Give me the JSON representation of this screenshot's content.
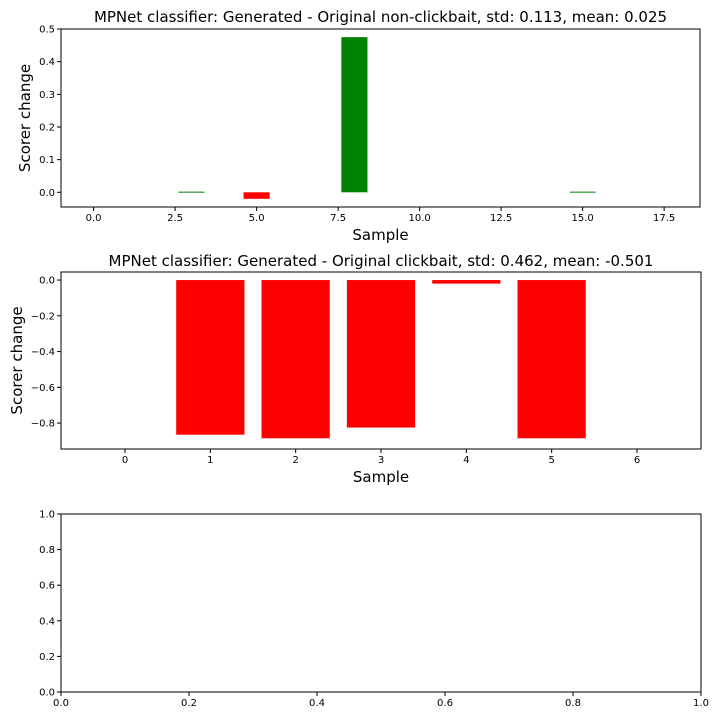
{
  "colors": {
    "positive": "#008000",
    "negative": "#ff0000",
    "axis": "#000000",
    "background": "#ffffff"
  },
  "chart_data": [
    {
      "type": "bar",
      "title": "MPNet classifier: Generated - Original non-clickbait, std: 0.113, mean: 0.025",
      "xlabel": "Sample",
      "ylabel": "Scorer change",
      "xlim": [
        -1.0,
        18.6
      ],
      "ylim": [
        -0.045,
        0.5
      ],
      "xticks": [
        0.0,
        2.5,
        5.0,
        7.5,
        10.0,
        12.5,
        15.0,
        17.5
      ],
      "xtick_labels": [
        "0.0",
        "2.5",
        "5.0",
        "7.5",
        "10.0",
        "12.5",
        "15.0",
        "17.5"
      ],
      "yticks": [
        0.0,
        0.1,
        0.2,
        0.3,
        0.4,
        0.5
      ],
      "ytick_labels": [
        "0.0",
        "0.1",
        "0.2",
        "0.3",
        "0.4",
        "0.5"
      ],
      "bar_width": 0.8,
      "x": [
        3,
        5,
        8,
        15
      ],
      "values": [
        0.002,
        -0.02,
        0.475,
        0.002
      ],
      "bar_colors": [
        "#008000",
        "#ff0000",
        "#008000",
        "#008000"
      ]
    },
    {
      "type": "bar",
      "title": "MPNet classifier: Generated - Original clickbait, std: 0.462, mean: -0.501",
      "xlabel": "Sample",
      "ylabel": "Scorer change",
      "xlim": [
        -0.75,
        6.75
      ],
      "ylim": [
        -0.945,
        0.045
      ],
      "xticks": [
        0,
        1,
        2,
        3,
        4,
        5,
        6
      ],
      "xtick_labels": [
        "0",
        "1",
        "2",
        "3",
        "4",
        "5",
        "6"
      ],
      "yticks": [
        0.0,
        -0.2,
        -0.4,
        -0.6,
        -0.8
      ],
      "ytick_labels": [
        "0.0",
        "−0.2",
        "−0.4",
        "−0.6",
        "−0.8"
      ],
      "bar_width": 0.8,
      "x": [
        1,
        2,
        3,
        4,
        5
      ],
      "values": [
        -0.865,
        -0.885,
        -0.825,
        -0.02,
        -0.885
      ],
      "bar_colors": [
        "#ff0000",
        "#ff0000",
        "#ff0000",
        "#ff0000",
        "#ff0000"
      ]
    },
    {
      "type": "line",
      "title": "",
      "xlabel": "",
      "ylabel": "",
      "xlim": [
        0.0,
        1.0
      ],
      "ylim": [
        0.0,
        1.0
      ],
      "xticks": [
        0.0,
        0.2,
        0.4,
        0.6,
        0.8,
        1.0
      ],
      "xtick_labels": [
        "0.0",
        "0.2",
        "0.4",
        "0.6",
        "0.8",
        "1.0"
      ],
      "yticks": [
        0.0,
        0.2,
        0.4,
        0.6,
        0.8,
        1.0
      ],
      "ytick_labels": [
        "0.0",
        "0.2",
        "0.4",
        "0.6",
        "0.8",
        "1.0"
      ],
      "x": [],
      "values": [],
      "bar_colors": []
    }
  ]
}
